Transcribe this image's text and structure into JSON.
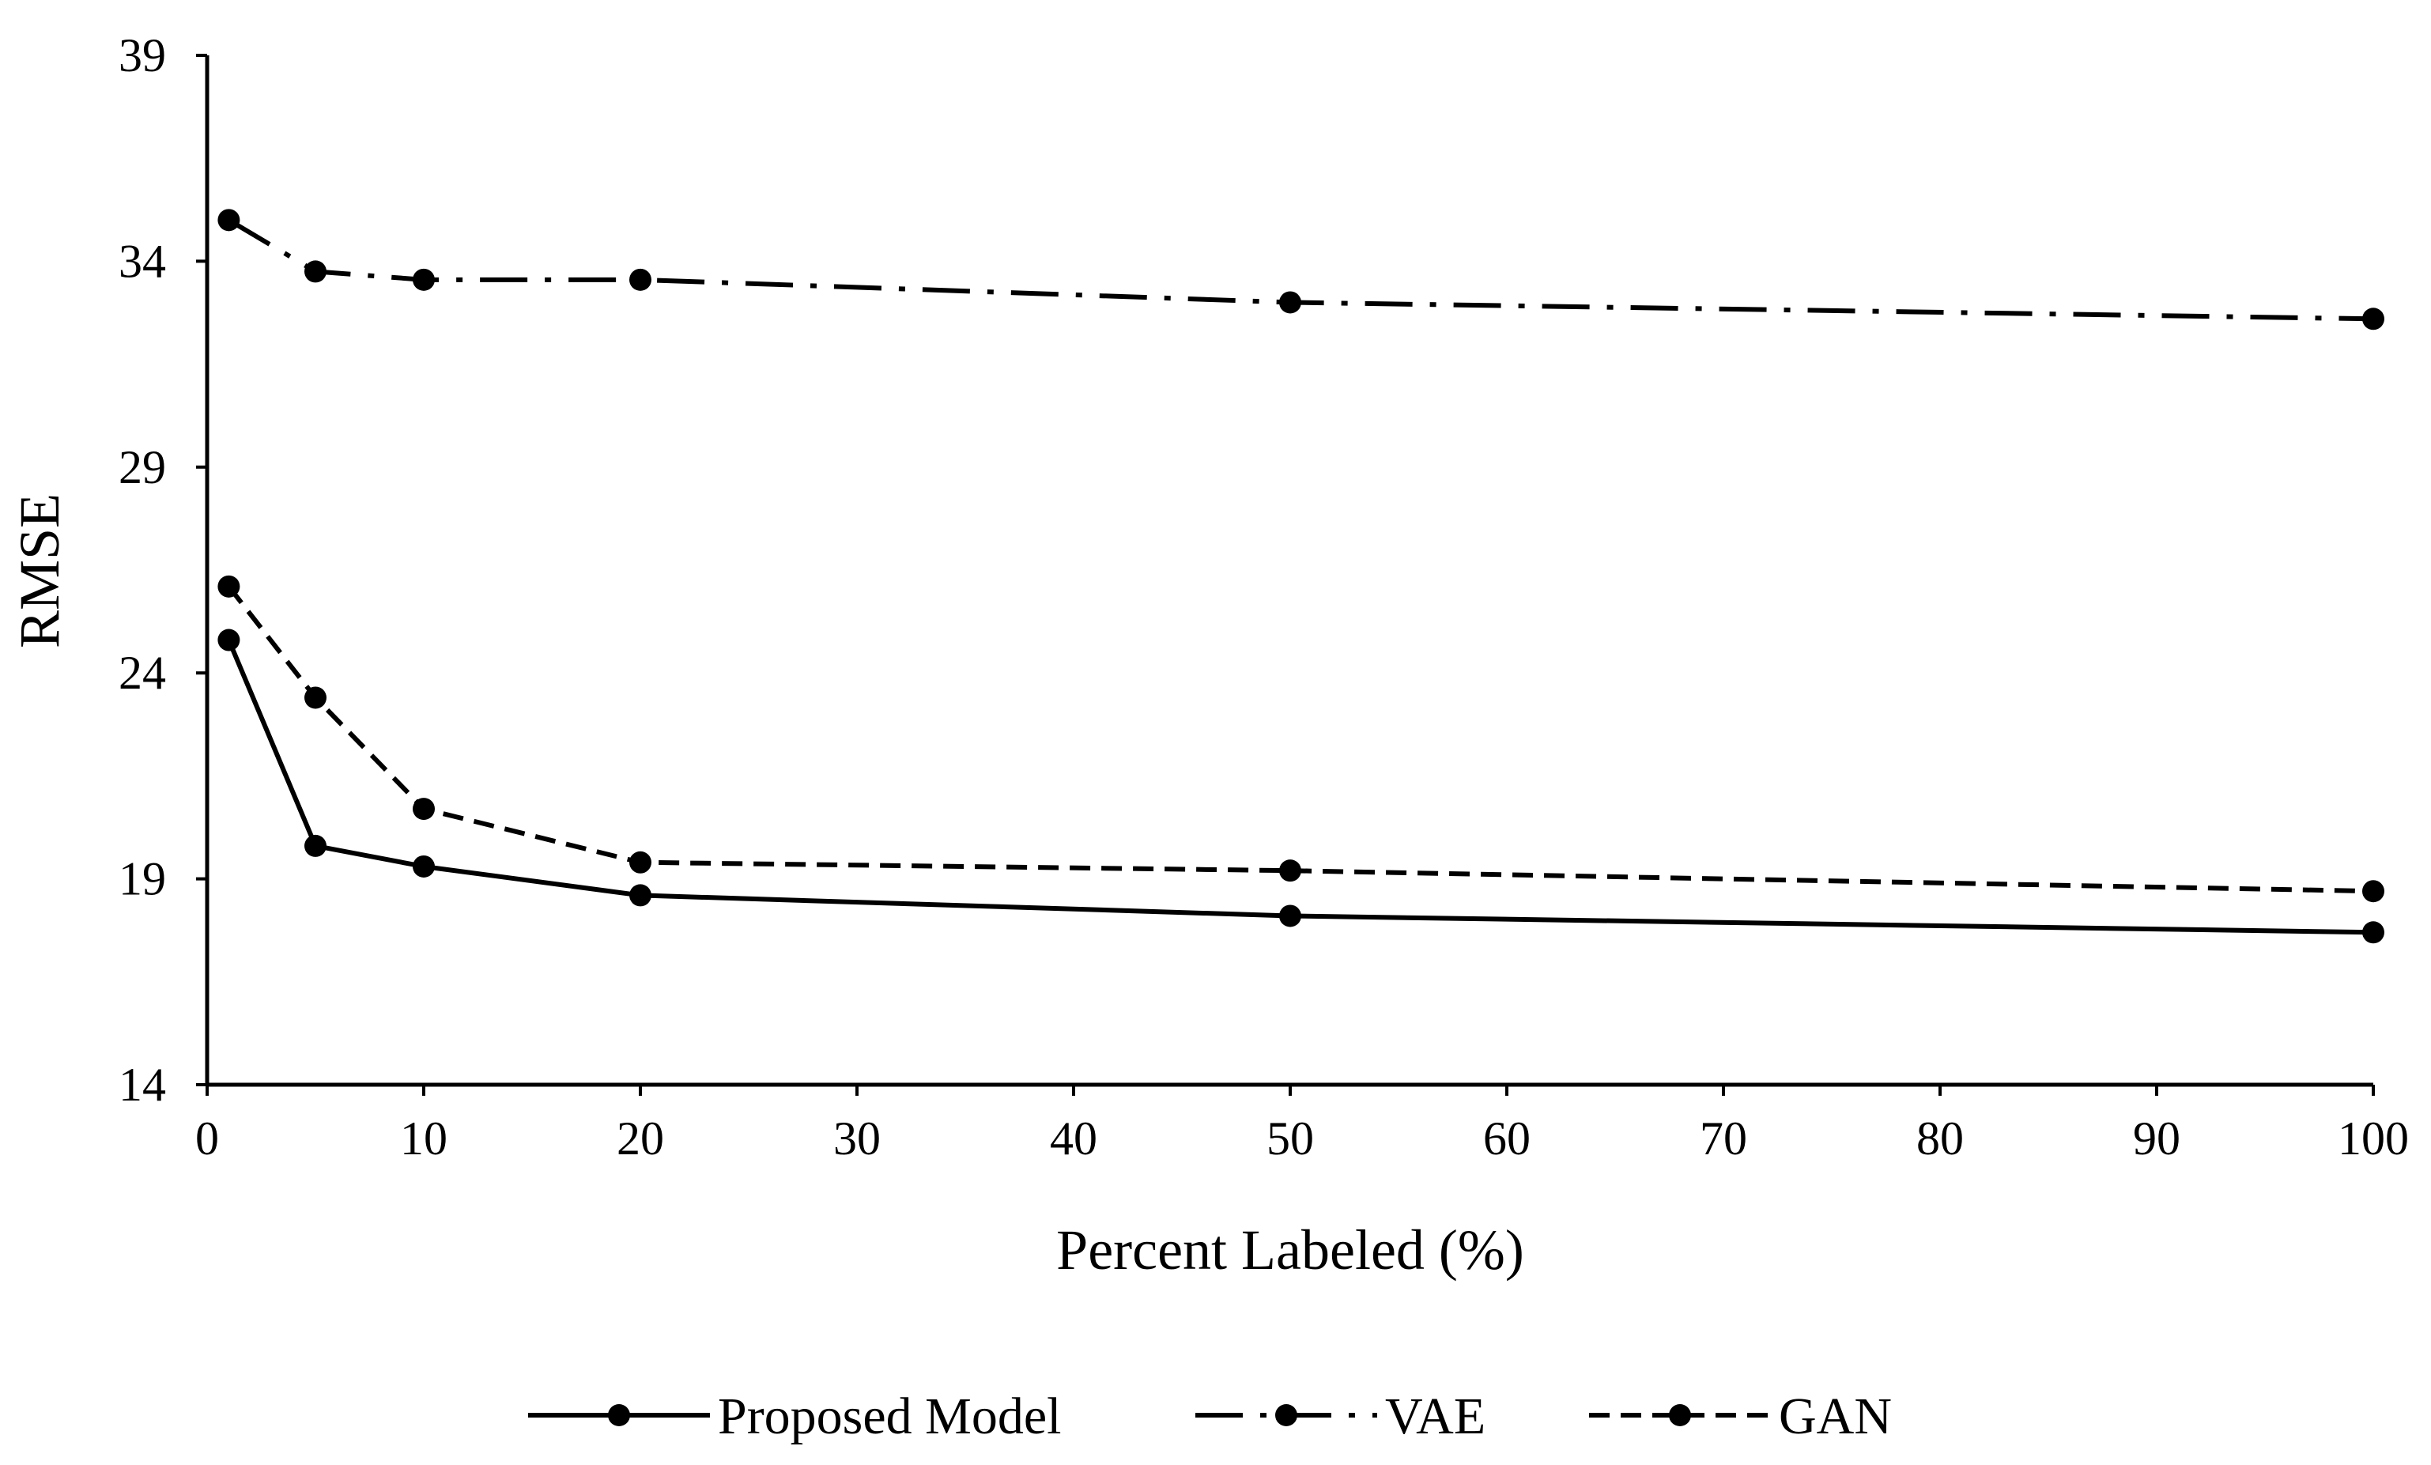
{
  "chart_data": {
    "type": "line",
    "title": "",
    "xlabel": "Percent Labeled (%)",
    "ylabel": "RMSE",
    "xlim": [
      0,
      100
    ],
    "ylim": [
      14,
      39
    ],
    "xticks": [
      0,
      10,
      20,
      30,
      40,
      50,
      60,
      70,
      80,
      90,
      100
    ],
    "yticks": [
      14,
      19,
      24,
      29,
      34,
      39
    ],
    "grid": false,
    "legend_position": "bottom-center",
    "x": [
      1,
      5,
      10,
      20,
      50,
      100
    ],
    "series": [
      {
        "name": "Proposed Model",
        "line_style": "solid",
        "marker": "circle",
        "color": "#000000",
        "values": [
          24.8,
          19.8,
          19.3,
          18.6,
          18.1,
          17.7
        ]
      },
      {
        "name": "VAE",
        "line_style": "dash-dot",
        "marker": "circle",
        "color": "#000000",
        "values": [
          35.0,
          33.75,
          33.55,
          33.55,
          33.0,
          32.6
        ]
      },
      {
        "name": "GAN",
        "line_style": "dashed",
        "marker": "circle",
        "color": "#000000",
        "values": [
          26.1,
          23.4,
          20.7,
          19.4,
          19.2,
          18.7
        ]
      }
    ]
  }
}
